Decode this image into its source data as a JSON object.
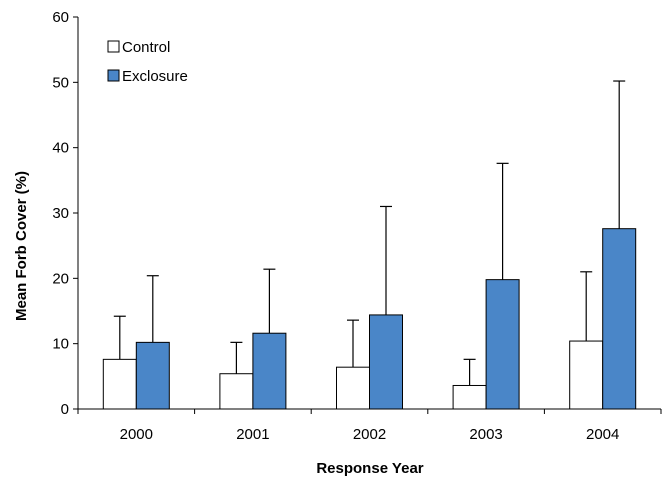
{
  "chart_data": {
    "type": "bar",
    "title": "",
    "xlabel": "Response Year",
    "ylabel": "Mean Forb Cover (%)",
    "categories": [
      "2000",
      "2001",
      "2002",
      "2003",
      "2004"
    ],
    "ylim": [
      0,
      60
    ],
    "yticks": [
      0,
      10,
      20,
      30,
      40,
      50,
      60
    ],
    "grid": false,
    "legend_position": "top-left",
    "series": [
      {
        "name": "Control",
        "color": "#ffffff",
        "values": [
          7.6,
          5.4,
          6.4,
          3.6,
          10.4
        ],
        "error_upper": [
          14.2,
          10.2,
          13.6,
          7.6,
          21.0
        ]
      },
      {
        "name": "Exclosure",
        "color": "#4a86c8",
        "values": [
          10.2,
          11.6,
          14.4,
          19.8,
          27.6
        ],
        "error_upper": [
          20.4,
          21.4,
          31.0,
          37.6,
          50.2
        ]
      }
    ]
  }
}
